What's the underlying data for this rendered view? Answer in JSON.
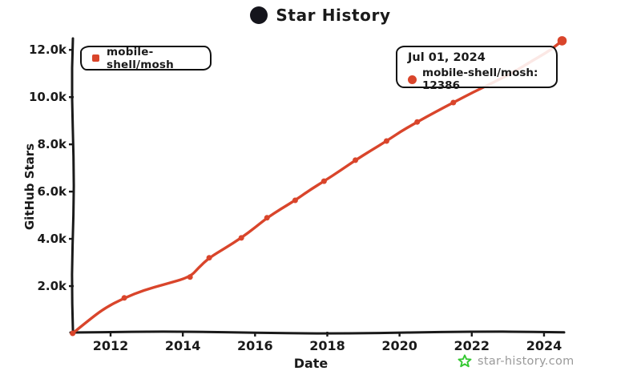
{
  "header": {
    "title": "Star History",
    "logo_icon": "github-logo"
  },
  "legend": {
    "items": [
      {
        "label": "mobile-shell/mosh",
        "color": "#D9452B",
        "marker": "square"
      }
    ]
  },
  "tooltip": {
    "date": "Jul 01, 2024",
    "series": "mobile-shell/mosh",
    "value": "12386",
    "label": "mobile-shell/mosh: 12386",
    "marker_color": "#D9452B"
  },
  "watermark": {
    "text": "star-history.com",
    "icon": "star-icon",
    "icon_color": "#35C832",
    "text_color": "#9a9a9a"
  },
  "chart_data": {
    "type": "line",
    "title": "Star History",
    "xlabel": "Date",
    "ylabel": "GitHub Stars",
    "grid": false,
    "legend_position": "top-left",
    "axis_color": "#1a1a1a",
    "x_ticks": [
      "2012",
      "2014",
      "2016",
      "2018",
      "2020",
      "2022",
      "2024"
    ],
    "x_tick_values": [
      2012,
      2014,
      2016,
      2018,
      2020,
      2022,
      2024
    ],
    "y_ticks": [
      "2.0k",
      "4.0k",
      "6.0k",
      "8.0k",
      "10.0k",
      "12.0k"
    ],
    "y_tick_values": [
      2000,
      4000,
      6000,
      8000,
      10000,
      12000
    ],
    "xlim": [
      2010.9,
      2025.1
    ],
    "ylim": [
      0,
      12600
    ],
    "series": [
      {
        "name": "mobile-shell/mosh",
        "color": "#D9452B",
        "points": [
          [
            2010.95,
            0
          ],
          [
            2011.38,
            540
          ],
          [
            2011.82,
            1050
          ],
          [
            2012.38,
            1500
          ],
          [
            2012.93,
            1830
          ],
          [
            2013.49,
            2070
          ],
          [
            2014.2,
            2380
          ],
          [
            2014.44,
            2780
          ],
          [
            2014.73,
            3200
          ],
          [
            2015.16,
            3600
          ],
          [
            2015.62,
            4040
          ],
          [
            2016.0,
            4480
          ],
          [
            2016.33,
            4890
          ],
          [
            2016.71,
            5260
          ],
          [
            2017.11,
            5630
          ],
          [
            2017.49,
            6040
          ],
          [
            2017.91,
            6440
          ],
          [
            2018.36,
            6890
          ],
          [
            2018.78,
            7330
          ],
          [
            2019.2,
            7730
          ],
          [
            2019.64,
            8140
          ],
          [
            2020.04,
            8550
          ],
          [
            2020.49,
            8950
          ],
          [
            2020.98,
            9360
          ],
          [
            2021.49,
            9770
          ],
          [
            2022.04,
            10210
          ],
          [
            2022.6,
            10620
          ],
          [
            2023.16,
            11060
          ],
          [
            2023.71,
            11570
          ],
          [
            2024.16,
            11970
          ],
          [
            2024.5,
            12386
          ]
        ],
        "marker_points": [
          [
            2010.95,
            0
          ],
          [
            2012.38,
            1500
          ],
          [
            2014.2,
            2380
          ],
          [
            2014.73,
            3200
          ],
          [
            2015.62,
            4040
          ],
          [
            2016.33,
            4890
          ],
          [
            2017.11,
            5630
          ],
          [
            2017.91,
            6440
          ],
          [
            2018.78,
            7330
          ],
          [
            2019.64,
            8140
          ],
          [
            2020.49,
            8950
          ],
          [
            2021.49,
            9770
          ]
        ],
        "highlight_point": [
          2024.5,
          12386
        ]
      }
    ]
  }
}
